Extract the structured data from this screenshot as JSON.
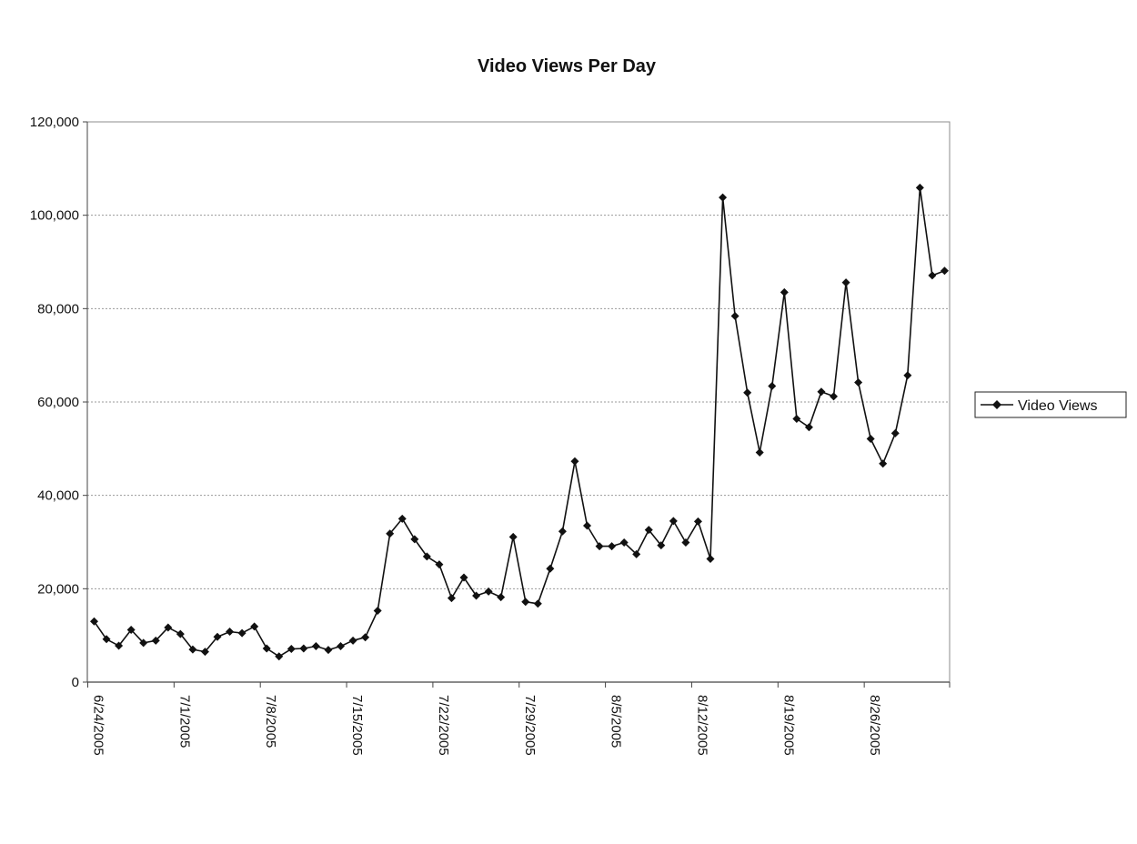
{
  "chart_data": {
    "type": "line",
    "title": "Video Views Per Day",
    "xlabel": "",
    "ylabel": "",
    "ylim": [
      0,
      120000
    ],
    "y_ticks": [
      0,
      20000,
      40000,
      60000,
      80000,
      100000,
      120000
    ],
    "y_tick_labels": [
      "0",
      "20,000",
      "40,000",
      "60,000",
      "80,000",
      "100,000",
      "120,000"
    ],
    "x_tick_labels": [
      "6/24/2005",
      "7/1/2005",
      "7/8/2005",
      "7/15/2005",
      "7/22/2005",
      "7/29/2005",
      "8/5/2005",
      "8/12/2005",
      "8/19/2005",
      "8/26/2005"
    ],
    "x_start": "6/24/2005",
    "grid": true,
    "legend": "right",
    "series": [
      {
        "name": "Video Views",
        "color": "#111111",
        "marker": "diamond",
        "values": [
          13000,
          9200,
          7800,
          11200,
          8400,
          8900,
          11700,
          10300,
          7000,
          6500,
          9700,
          10800,
          10500,
          11900,
          7200,
          5500,
          7100,
          7200,
          7700,
          6900,
          7700,
          8900,
          9600,
          15300,
          31800,
          35000,
          30600,
          26900,
          25200,
          18000,
          22400,
          18500,
          19400,
          18200,
          31100,
          17200,
          16800,
          24300,
          32300,
          47300,
          33500,
          29100,
          29100,
          29900,
          27400,
          32600,
          29300,
          34500,
          29900,
          34400,
          26400,
          103800,
          78400,
          62000,
          49200,
          63400,
          83500,
          56400,
          54600,
          62200,
          61200,
          85600,
          64200,
          52100,
          46800,
          53300,
          65700,
          105900,
          87100,
          88100
        ]
      }
    ]
  }
}
